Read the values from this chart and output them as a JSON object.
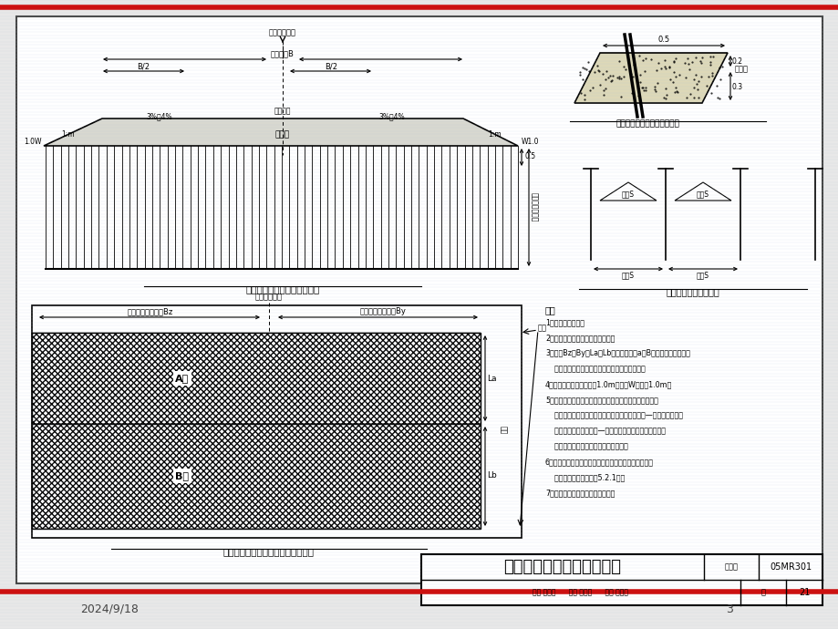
{
  "bg_color": "#e8e8e8",
  "main_bg": "#ffffff",
  "red_color": "#cc1111",
  "title_text": "2024/9/18",
  "page_num": "3",
  "bottom_title": "塑料排水板处理软基设计图",
  "chart_num": "05MR301",
  "chart_set": "图集号",
  "page_val": "21",
  "cross_section_title": "塑料排水板处理软基横断面图",
  "plan_section_title": "塑料排水板处理软基平面分区示意图",
  "plan_layout_title": "塑料排水板平面布置图",
  "detail_title": "沙垫层内塑料排水板彊折大样",
  "notes_title": "注：",
  "note1": "1、本图单位：米。",
  "note2": "2、塑料排水板采用正三角形布置。",
  "note3": "3、图中Bz、By、La、Lb、板顶标高及a、B区塑料排水板长度、",
  "note3b": "    间距详见《塑料排水板处理软基工程数量表》。",
  "note4": "4、沙垫层尴出外侧排水板1.0m，图中W不小于1.0m。",
  "note5": "5、采用塑料排水板进行软基处理处须进行预压，可以采用",
  "note5b": "    堆载（超载、欠载等载）预压、真空预压或真空—堆载联合预压。",
  "note5c": "    如采用真空预压或真空—堆载联合预压，则加图区分区、",
  "note5d": "    抜真空管布置及合封应进行专门设计。",
  "note6": "6、本图适用于桥头路基放射时软基处理；用于路基软基",
  "note6b": "    处理时的分区见总说曵5.2.1条。",
  "note7": "7、本图路基横断面形式仅为示意。"
}
